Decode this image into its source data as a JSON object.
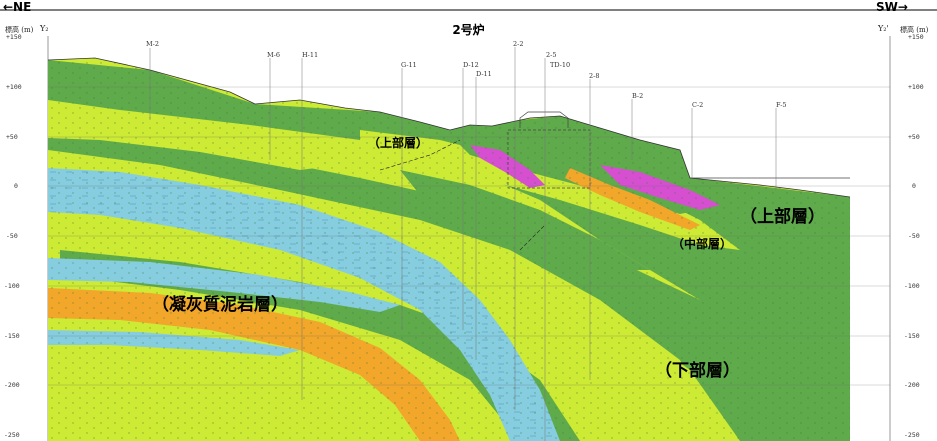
{
  "header": {
    "left_direction": "←NE",
    "right_direction": "SW→",
    "title": "2号炉",
    "elev_label_left": "標高 (m)",
    "elev_label_right": "標高 (m)",
    "marker_left": "Y₂",
    "marker_right": "Y₂'"
  },
  "y_axis": {
    "ticks": [
      "+150",
      "+100",
      "+50",
      "0",
      "-50",
      "-100",
      "-150",
      "-200",
      "-250"
    ]
  },
  "boreholes": [
    "M-2",
    "M-6",
    "H-11",
    "G-11",
    "D-12",
    "D-11",
    "2-2",
    "2-5",
    "TD-10",
    "2-8",
    "B-2",
    "C-2",
    "F-5"
  ],
  "layers": {
    "upper_small": "（上部層）",
    "upper": "（上部層）",
    "middle": "（中部層）",
    "tuff": "（凝灰質泥岩層）",
    "lower": "（下部層）"
  },
  "colors": {
    "dark_green": "#5faa4b",
    "lime": "#cdea34",
    "blue": "#86cde0",
    "orange": "#f2a62a",
    "magenta": "#d64fd1"
  }
}
